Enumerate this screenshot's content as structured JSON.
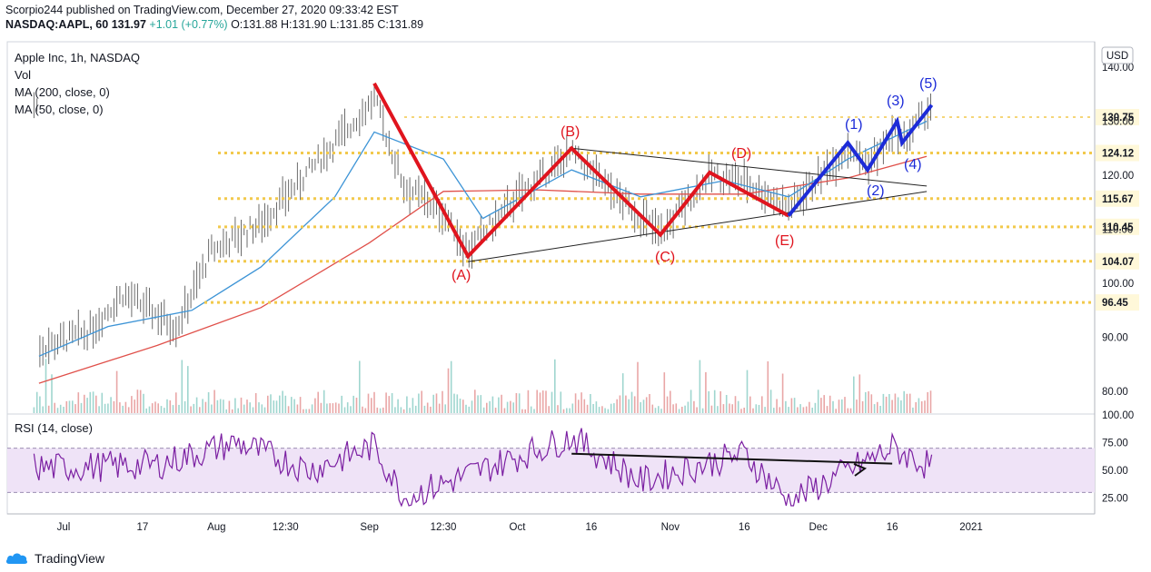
{
  "header": {
    "line1": "Scorpio244 published on TradingView.com, December 27, 2020 09:33:42 EST",
    "symbol": "NASDAQ:AAPL, 60",
    "last": "131.97",
    "change": "+1.01 (+0.77%)",
    "ohlc": "O:131.88 H:131.90 L:131.85 C:131.89"
  },
  "legend": {
    "title": "Apple Inc, 1h, NASDAQ",
    "vol": "Vol",
    "ma200": "MA (200, close, 0)",
    "ma50": "MA (50, close, 0)"
  },
  "rsi_label": "RSI (14, close)",
  "currency": "USD",
  "logo_text": "TradingView",
  "colors": {
    "candle": "#6b6b6b",
    "ma200": "#e0504a",
    "ma50": "#3d94d6",
    "red_wave": "#e0141e",
    "blue_wave": "#1c2bd8",
    "level": "#f2c94c",
    "rsi": "#7b1fa2",
    "rsi_band": "#efe3f7",
    "price_tag": "#fff8d9"
  },
  "chart_data": [
    {
      "type": "line",
      "title": "Apple Inc, 1h, NASDAQ",
      "x_ticks": [
        "Jul",
        "17",
        "Aug",
        "12:30",
        "Sep",
        "12:30",
        "Oct",
        "16",
        "Nov",
        "16",
        "Dec",
        "16",
        "2021"
      ],
      "y_ticks": [
        "140.00",
        "130.00",
        "120.00",
        "110.00",
        "100.00",
        "90.00",
        "80.00"
      ],
      "ylim": [
        76,
        142
      ],
      "series": [
        {
          "name": "Vol",
          "x": [],
          "y": []
        },
        {
          "name": "MA (200, close, 0)",
          "x": [
            "Jun 26",
            "Jul 20",
            "Aug 10",
            "Sep 1",
            "Sep 16",
            "Oct 5",
            "Oct 26",
            "Nov 16",
            "Dec 7",
            "Dec 23"
          ],
          "y": [
            81.5,
            88.5,
            95.5,
            107.5,
            117.0,
            117.3,
            116.5,
            116.5,
            119.5,
            123.5
          ]
        },
        {
          "name": "MA (50, close, 0)",
          "x": [
            "Jun 26",
            "Jul 10",
            "Jul 27",
            "Aug 10",
            "Aug 25",
            "Sep 2",
            "Sep 16",
            "Sep 24",
            "Oct 12",
            "Oct 26",
            "Nov 12",
            "Nov 25",
            "Dec 7",
            "Dec 23"
          ],
          "y": [
            86.5,
            92.0,
            95.0,
            103.0,
            116.0,
            128.0,
            123.0,
            112.0,
            121.0,
            116.0,
            119.0,
            116.0,
            123.0,
            130.0
          ]
        }
      ],
      "levels": [
        130.75,
        124.12,
        115.67,
        110.45,
        104.07,
        96.45
      ],
      "red_wave": {
        "labels": [
          "(A)",
          "(B)",
          "(C)",
          "(D)",
          "(E)"
        ],
        "x": [
          "Sep 2",
          "Sep 21",
          "Oct 12",
          "Oct 30",
          "Nov 9",
          "Nov 25"
        ],
        "y": [
          137.0,
          105.0,
          125.0,
          109.0,
          120.5,
          112.5
        ]
      },
      "blue_wave": {
        "labels": [
          "(1)",
          "(2)",
          "(3)",
          "(4)",
          "(5)"
        ],
        "x": [
          "Nov 25",
          "Dec 7",
          "Dec 11",
          "Dec 17",
          "Dec 18",
          "Dec 24"
        ],
        "y": [
          112.5,
          126.0,
          121.0,
          130.0,
          126.0,
          133.0
        ]
      },
      "trendlines": [
        {
          "x": [
            "Oct 12",
            "Dec 23"
          ],
          "y": [
            125.0,
            118.0
          ]
        },
        {
          "x": [
            "Sep 21",
            "Dec 23"
          ],
          "y": [
            104.0,
            117.0
          ]
        }
      ],
      "last_price": 131.97
    },
    {
      "type": "line",
      "title": "RSI (14, close)",
      "y_ticks": [
        "100.00",
        "75.00",
        "50.00",
        "25.00"
      ],
      "ylim": [
        0,
        100
      ],
      "band": [
        30,
        70
      ],
      "series": [
        {
          "name": "RSI (14, close)",
          "x": [
            "Jun 26",
            "Jul 20",
            "Aug 5",
            "Aug 20",
            "Sep 2",
            "Sep 8",
            "Oct 12",
            "Oct 26",
            "Nov 16",
            "Nov 25",
            "Dec 16",
            "Dec 23"
          ],
          "y": [
            52,
            55,
            75,
            50,
            72,
            25,
            80,
            40,
            65,
            22,
            70,
            55
          ]
        }
      ],
      "trendline": {
        "x": [
          "Oct 12",
          "Dec 16"
        ],
        "y": [
          65,
          56
        ]
      }
    }
  ]
}
